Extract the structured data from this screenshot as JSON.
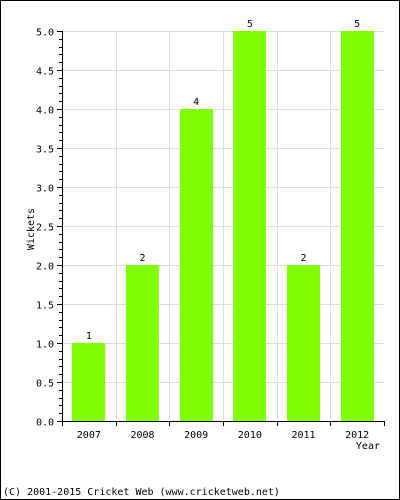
{
  "chart_data": {
    "type": "bar",
    "categories": [
      "2007",
      "2008",
      "2009",
      "2010",
      "2011",
      "2012"
    ],
    "values": [
      1,
      2,
      4,
      5,
      2,
      5
    ],
    "data_labels": [
      "1",
      "2",
      "4",
      "5",
      "2",
      "5"
    ],
    "xlabel": "Year",
    "ylabel": "Wickets",
    "ylim": [
      0,
      5
    ],
    "yticks": [
      "0.0",
      "0.5",
      "1.0",
      "1.5",
      "2.0",
      "2.5",
      "3.0",
      "3.5",
      "4.0",
      "4.5",
      "5.0"
    ],
    "grid": true,
    "bar_color": "#80ff00",
    "label_colors": {
      "max": "#000080",
      "default": "#000000"
    }
  },
  "footer": {
    "copyright": "(C) 2001-2015 Cricket Web (www.cricketweb.net)"
  }
}
